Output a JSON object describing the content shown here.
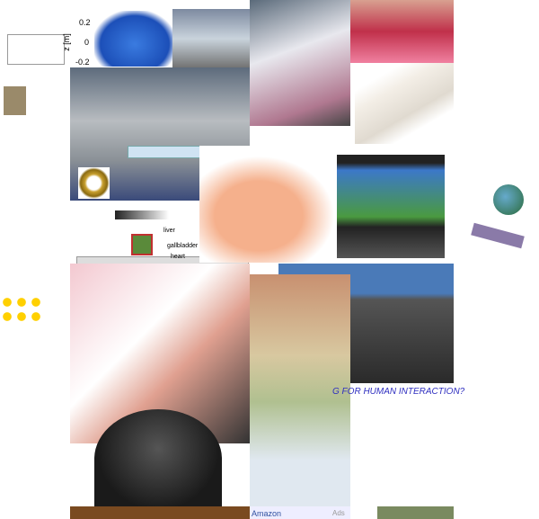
{
  "plot": {
    "ticks": [
      "0.2",
      "0",
      "-0.2"
    ],
    "axis_label": "z [m]"
  },
  "hand_labels": [
    "liver",
    "gallbladder",
    "heart"
  ],
  "caption": "G FOR HUMAN INTERACTION?",
  "footer": {
    "left": "Amazon",
    "right": "Ads"
  }
}
